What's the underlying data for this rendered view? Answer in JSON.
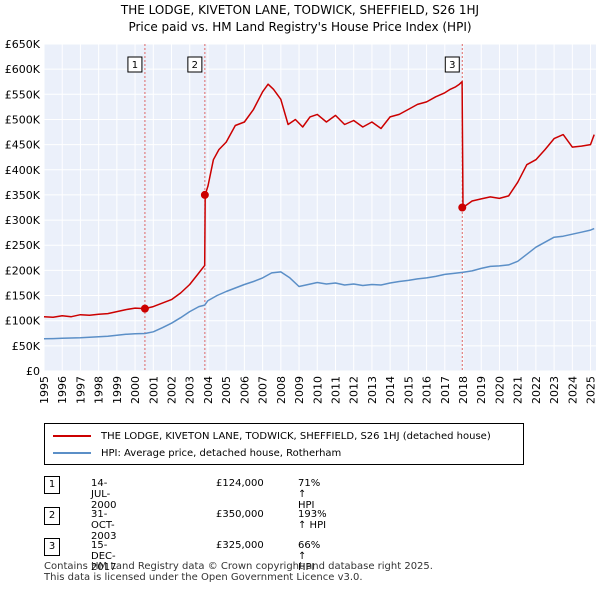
{
  "title": {
    "line1": "THE LODGE, KIVETON LANE, TODWICK, SHEFFIELD, S26 1HJ",
    "line2": "Price paid vs. HM Land Registry's House Price Index (HPI)"
  },
  "chart_data": {
    "type": "line",
    "title": "THE LODGE, KIVETON LANE, TODWICK, SHEFFIELD, S26 1HJ — Price paid vs. HM Land Registry's House Price Index (HPI)",
    "xlim": [
      1995,
      2025.3
    ],
    "ylim": [
      0,
      650000
    ],
    "y_ticks": [
      0,
      50000,
      100000,
      150000,
      200000,
      250000,
      300000,
      350000,
      400000,
      450000,
      500000,
      550000,
      600000,
      650000
    ],
    "y_tick_labels": [
      "£0",
      "£50K",
      "£100K",
      "£150K",
      "£200K",
      "£250K",
      "£300K",
      "£350K",
      "£400K",
      "£450K",
      "£500K",
      "£550K",
      "£600K",
      "£650K"
    ],
    "x_ticks": [
      1995,
      1996,
      1997,
      1998,
      1999,
      2000,
      2001,
      2002,
      2003,
      2004,
      2005,
      2006,
      2007,
      2008,
      2009,
      2010,
      2011,
      2012,
      2013,
      2014,
      2015,
      2016,
      2017,
      2018,
      2019,
      2020,
      2021,
      2022,
      2023,
      2024,
      2025
    ],
    "x_tick_labels": [
      "1995",
      "1996",
      "1997",
      "1998",
      "1999",
      "2000",
      "2001",
      "2002",
      "2003",
      "2004",
      "2005",
      "2006",
      "2007",
      "2008",
      "2009",
      "2010",
      "2011",
      "2012",
      "2013",
      "2014",
      "2015",
      "2016",
      "2017",
      "2018",
      "2019",
      "2020",
      "2021",
      "2022",
      "2023",
      "2024",
      "2025"
    ],
    "grid": true,
    "series": [
      {
        "name": "THE LODGE, KIVETON LANE, TODWICK, SHEFFIELD, S26 1HJ (detached house)",
        "color": "#cc0000",
        "x": [
          1995.0,
          1995.5,
          1996.0,
          1996.5,
          1997.0,
          1997.5,
          1998.0,
          1998.5,
          1999.0,
          1999.5,
          2000.0,
          2000.54,
          2001.0,
          2001.5,
          2002.0,
          2002.5,
          2003.0,
          2003.5,
          2003.82,
          2003.85,
          2004.0,
          2004.3,
          2004.6,
          2005.0,
          2005.5,
          2006.0,
          2006.5,
          2007.0,
          2007.3,
          2007.6,
          2008.0,
          2008.4,
          2008.8,
          2009.2,
          2009.6,
          2010.0,
          2010.5,
          2011.0,
          2011.5,
          2012.0,
          2012.5,
          2013.0,
          2013.5,
          2014.0,
          2014.5,
          2015.0,
          2015.5,
          2016.0,
          2016.5,
          2017.0,
          2017.3,
          2017.6,
          2017.8,
          2017.95,
          2018.0,
          2018.5,
          2019.0,
          2019.5,
          2020.0,
          2020.5,
          2021.0,
          2021.5,
          2022.0,
          2022.5,
          2023.0,
          2023.5,
          2024.0,
          2024.5,
          2025.0,
          2025.2
        ],
        "y": [
          108000,
          107000,
          110000,
          108000,
          112000,
          111000,
          113000,
          114000,
          118000,
          122000,
          125000,
          124000,
          128000,
          135000,
          142000,
          155000,
          172000,
          195000,
          210000,
          350000,
          368000,
          420000,
          440000,
          455000,
          488000,
          495000,
          520000,
          555000,
          570000,
          560000,
          540000,
          490000,
          500000,
          485000,
          505000,
          510000,
          495000,
          508000,
          490000,
          498000,
          485000,
          495000,
          482000,
          505000,
          510000,
          520000,
          530000,
          535000,
          545000,
          553000,
          560000,
          565000,
          570000,
          575000,
          325000,
          338000,
          342000,
          346000,
          343000,
          348000,
          375000,
          410000,
          420000,
          440000,
          462000,
          470000,
          445000,
          447000,
          450000,
          470000
        ]
      },
      {
        "name": "HPI: Average price, detached house, Rotherham",
        "color": "#5b8fc7",
        "x": [
          1995.0,
          1995.5,
          1996.0,
          1996.5,
          1997.0,
          1997.5,
          1998.0,
          1998.5,
          1999.0,
          1999.5,
          2000.0,
          2000.54,
          2001.0,
          2001.5,
          2002.0,
          2002.5,
          2003.0,
          2003.5,
          2003.82,
          2004.0,
          2004.5,
          2005.0,
          2005.5,
          2006.0,
          2006.5,
          2007.0,
          2007.5,
          2008.0,
          2008.5,
          2009.0,
          2009.5,
          2010.0,
          2010.5,
          2011.0,
          2011.5,
          2012.0,
          2012.5,
          2013.0,
          2013.5,
          2014.0,
          2014.5,
          2015.0,
          2015.5,
          2016.0,
          2016.5,
          2017.0,
          2017.5,
          2017.96,
          2018.5,
          2019.0,
          2019.5,
          2020.0,
          2020.5,
          2021.0,
          2021.5,
          2022.0,
          2022.5,
          2023.0,
          2023.5,
          2024.0,
          2024.5,
          2025.0,
          2025.2
        ],
        "y": [
          64000,
          64500,
          65000,
          65500,
          66000,
          67000,
          68000,
          69000,
          71000,
          73000,
          74000,
          74500,
          78000,
          86000,
          95000,
          106000,
          118000,
          128000,
          131000,
          140000,
          150000,
          158000,
          165000,
          172000,
          178000,
          185000,
          195000,
          197000,
          185000,
          168000,
          172000,
          176000,
          173000,
          175000,
          171000,
          173000,
          170000,
          172000,
          171000,
          175000,
          178000,
          180000,
          183000,
          185000,
          188000,
          192000,
          194000,
          196000,
          199000,
          204000,
          208000,
          209000,
          211000,
          218000,
          232000,
          246000,
          256000,
          266000,
          268000,
          272000,
          276000,
          280000,
          283000
        ]
      }
    ],
    "sales": [
      {
        "label": "1",
        "x": 2000.54,
        "y": 124000
      },
      {
        "label": "2",
        "x": 2003.83,
        "y": 350000
      },
      {
        "label": "3",
        "x": 2017.96,
        "y": 325000
      }
    ]
  },
  "legend": {
    "items": [
      {
        "label": "THE LODGE, KIVETON LANE, TODWICK, SHEFFIELD, S26 1HJ (detached house)",
        "color": "#cc0000"
      },
      {
        "label": "HPI: Average price, detached house, Rotherham",
        "color": "#5b8fc7"
      }
    ]
  },
  "transactions": [
    {
      "num": "1",
      "date": "14-JUL-2000",
      "price": "£124,000",
      "hpi": "71% ↑ HPI"
    },
    {
      "num": "2",
      "date": "31-OCT-2003",
      "price": "£350,000",
      "hpi": "193% ↑ HPI"
    },
    {
      "num": "3",
      "date": "15-DEC-2017",
      "price": "£325,000",
      "hpi": "66% ↑ HPI"
    }
  ],
  "footer": {
    "line1": "Contains HM Land Registry data © Crown copyright and database right 2025.",
    "line2": "This data is licensed under the Open Government Licence v3.0."
  }
}
